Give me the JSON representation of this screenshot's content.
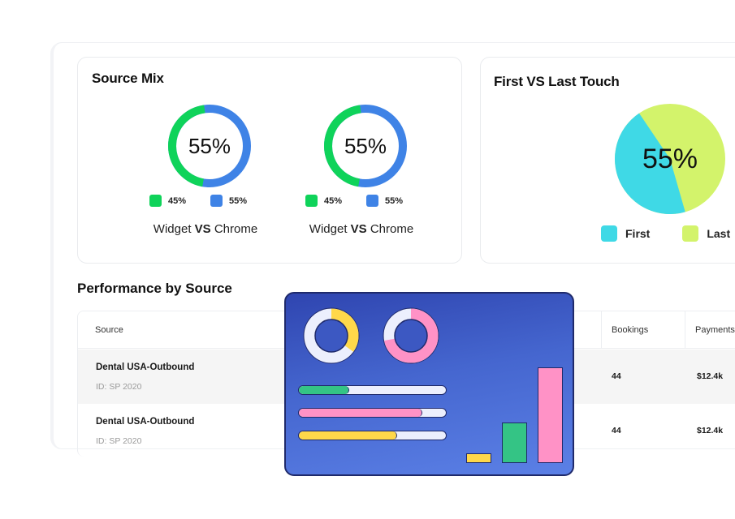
{
  "source_mix": {
    "title": "Source Mix",
    "charts": [
      {
        "center_label": "55%",
        "segments": [
          {
            "label": "45%",
            "value": 45,
            "color": "#0fd35a"
          },
          {
            "label": "55%",
            "value": 55,
            "color": "#3f83e6"
          }
        ],
        "caption_left": "Widget",
        "caption_vs": "VS",
        "caption_right": "Chrome"
      },
      {
        "center_label": "55%",
        "segments": [
          {
            "label": "45%",
            "value": 45,
            "color": "#0fd35a"
          },
          {
            "label": "55%",
            "value": 55,
            "color": "#3f83e6"
          }
        ],
        "caption_left": "Widget",
        "caption_vs": "VS",
        "caption_right": "Chrome"
      }
    ]
  },
  "first_last": {
    "title": "First VS Last Touch",
    "center_label": "55%",
    "segments": [
      {
        "label": "First",
        "value": 45,
        "color": "#3fd9e6"
      },
      {
        "label": "Last",
        "value": 55,
        "color": "#d3f36b"
      }
    ]
  },
  "performance": {
    "title": "Performance by Source",
    "columns": [
      "Source",
      "Bookings",
      "Payments"
    ],
    "rows": [
      {
        "name": "Dental USA-Outbound",
        "id": "ID: SP 2020",
        "bookings": "44",
        "payments": "$12.4k"
      },
      {
        "name": "Dental USA-Outbound",
        "id": "ID: SP 2020",
        "bookings": "44",
        "payments": "$12.4k"
      }
    ]
  },
  "illustration": {
    "donuts": [
      {
        "fill_pct": 35,
        "color": "#ffd84a"
      },
      {
        "fill_pct": 72,
        "color": "#ff92c6"
      }
    ],
    "bars": [
      {
        "fill_pct": 34,
        "color": "#34c485"
      },
      {
        "fill_pct": 84,
        "color": "#ff92c6"
      },
      {
        "fill_pct": 67,
        "color": "#ffd84a"
      }
    ],
    "columns": [
      {
        "height_pct": 9,
        "color": "#ffd84a"
      },
      {
        "height_pct": 42,
        "color": "#34c485"
      },
      {
        "height_pct": 100,
        "color": "#ff92c6"
      }
    ]
  }
}
